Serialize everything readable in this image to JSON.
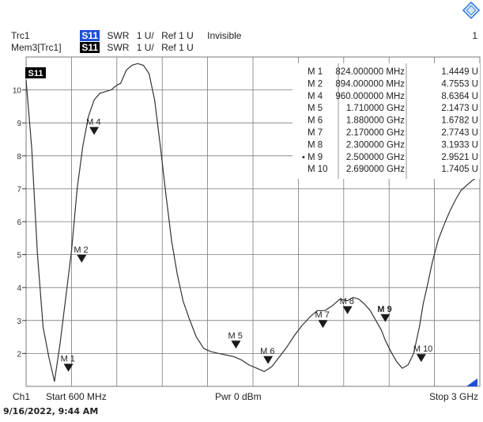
{
  "header": {
    "line1": {
      "trace": "Trc1",
      "chip": "S11",
      "format": "SWR",
      "scale": "1 U/",
      "ref": "Ref 1 U",
      "status": "Invisible",
      "channel_no": "1"
    },
    "line2": {
      "trace": "Mem3[Trc1]",
      "chip": "S11",
      "format": "SWR",
      "scale": "1 U/",
      "ref": "Ref 1 U"
    }
  },
  "footer": {
    "channel": "Ch1",
    "start": "Start 600 MHz",
    "power": "Pwr 0 dBm",
    "stop": "Stop 3 GHz"
  },
  "timestamp": "9/16/2022, 9:44 AM",
  "trace_tag": "S11",
  "colors": {
    "trace_chip": "#1f4fd8",
    "mem_chip": "#000000",
    "grid": "#7a7a7a",
    "trace": "#333333",
    "logo": "#2f7de1"
  },
  "icons": {
    "logo": "rohde-schwarz-logo-icon"
  },
  "chart_data": {
    "type": "line",
    "title": "",
    "xlabel": "",
    "ylabel": "",
    "xlim": [
      600,
      3000
    ],
    "ylim": [
      1,
      11
    ],
    "x_unit": "MHz",
    "y_unit": "U",
    "grid": true,
    "y_ticks": [
      2,
      3,
      4,
      5,
      6,
      7,
      8,
      9,
      10
    ],
    "y_tick_labels": [
      "2",
      "3",
      "4",
      "5",
      "6",
      "7",
      "8",
      "9",
      "10"
    ],
    "series": [
      {
        "x": [
          600,
          630,
          660,
          690,
          720,
          750,
          780,
          810,
          840,
          870,
          900,
          930,
          960,
          990,
          1020,
          1050,
          1080,
          1100,
          1130,
          1160,
          1190,
          1220,
          1250,
          1280,
          1310,
          1340,
          1370,
          1400,
          1430,
          1460,
          1500,
          1540,
          1580,
          1620,
          1660,
          1700,
          1740,
          1780,
          1820,
          1860,
          1900,
          1940,
          1980,
          2020,
          2060,
          2100,
          2140,
          2180,
          2220,
          2260,
          2300,
          2330,
          2360,
          2390,
          2420,
          2450,
          2480,
          2500,
          2530,
          2560,
          2590,
          2620,
          2650,
          2680,
          2700,
          2720,
          2750,
          2780,
          2810,
          2840,
          2870,
          2900,
          2930,
          2960,
          3000
        ],
        "y": [
          10.3,
          8.2,
          5.0,
          2.8,
          1.9,
          1.15,
          2.3,
          3.7,
          5.1,
          7.0,
          8.3,
          9.2,
          9.7,
          9.9,
          9.95,
          10.0,
          10.15,
          10.2,
          10.6,
          10.75,
          10.8,
          10.75,
          10.5,
          9.7,
          8.3,
          6.8,
          5.4,
          4.4,
          3.6,
          3.1,
          2.5,
          2.15,
          2.05,
          2.0,
          1.95,
          1.9,
          1.8,
          1.65,
          1.55,
          1.45,
          1.6,
          1.9,
          2.2,
          2.55,
          2.85,
          3.1,
          3.3,
          3.3,
          3.45,
          3.65,
          3.6,
          3.7,
          3.65,
          3.5,
          3.3,
          3.0,
          2.7,
          2.4,
          2.05,
          1.75,
          1.55,
          1.65,
          2.0,
          2.8,
          3.5,
          4.0,
          4.8,
          5.45,
          5.9,
          6.3,
          6.65,
          6.95,
          7.1,
          7.25,
          7.4
        ]
      }
    ],
    "markers": [
      {
        "name": "M 1",
        "label": "M 1",
        "x": 824,
        "y": 1.4449,
        "freq_text": "824.000000 MHz",
        "value_text": "1.4449 U"
      },
      {
        "name": "M 2",
        "label": "M 2",
        "x": 894,
        "y": 4.7553,
        "freq_text": "894.000000 MHz",
        "value_text": "4.7553 U"
      },
      {
        "name": "M 4",
        "label": "M 4",
        "x": 960,
        "y": 8.6364,
        "freq_text": "960.000000 MHz",
        "value_text": "8.6364 U"
      },
      {
        "name": "M 5",
        "label": "M 5",
        "x": 1710,
        "y": 2.1473,
        "freq_text": "1.710000 GHz",
        "value_text": "2.1473 U"
      },
      {
        "name": "M 6",
        "label": "M 6",
        "x": 1880,
        "y": 1.6782,
        "freq_text": "1.880000 GHz",
        "value_text": "1.6782 U"
      },
      {
        "name": "M 7",
        "label": "M 7",
        "x": 2170,
        "y": 2.7743,
        "freq_text": "2.170000 GHz",
        "value_text": "2.7743 U"
      },
      {
        "name": "M 8",
        "label": "M 8",
        "x": 2300,
        "y": 3.1933,
        "freq_text": "2.300000 GHz",
        "value_text": "3.1933 U"
      },
      {
        "name": "M 9",
        "label": "M 9",
        "x": 2500,
        "y": 2.9521,
        "freq_text": "2.500000 GHz",
        "value_text": "2.9521 U",
        "active": true
      },
      {
        "name": "M 10",
        "label": "M 10",
        "x": 2690,
        "y": 1.7405,
        "freq_text": "2.690000 GHz",
        "value_text": "1.7405 U"
      }
    ]
  }
}
